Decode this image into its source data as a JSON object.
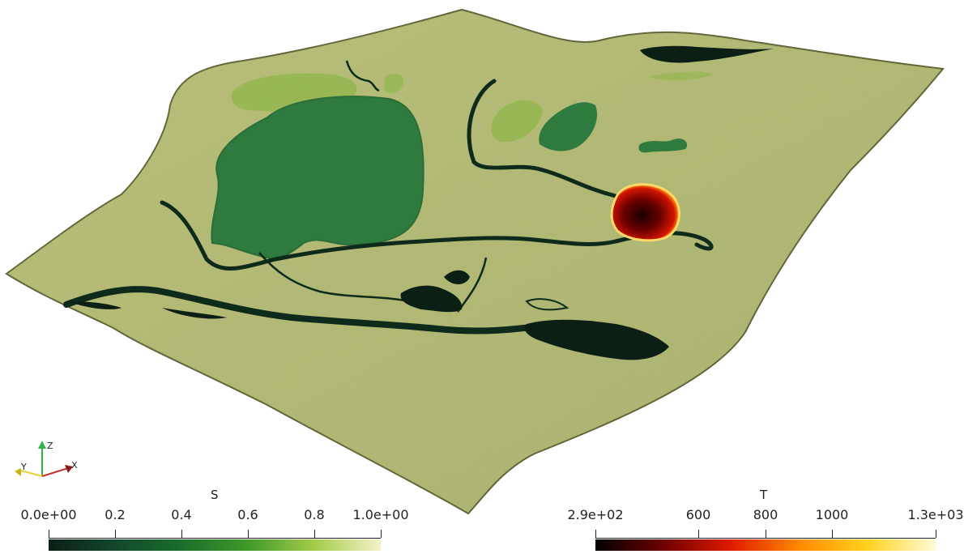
{
  "view": {
    "surface_field": "S",
    "fire_field": "T"
  },
  "axes_widget": {
    "x_label": "X",
    "y_label": "Y",
    "z_label": "Z"
  },
  "colorbar_s": {
    "title": "S",
    "ticks": [
      "0.0e+00",
      "0.2",
      "0.4",
      "0.6",
      "0.8",
      "1.0e+00"
    ],
    "colors": [
      "#0b1f17",
      "#12472c",
      "#1a6e2a",
      "#3f9a2a",
      "#a4cc4a",
      "#f3f2c9"
    ]
  },
  "colorbar_t": {
    "title": "T",
    "ticks": [
      "2.9e+02",
      "600",
      "800",
      "1000",
      "1.3e+03"
    ],
    "colors": [
      "#000000",
      "#6e0000",
      "#e01b00",
      "#ff8a00",
      "#ffd21f",
      "#fffbd8"
    ]
  }
}
